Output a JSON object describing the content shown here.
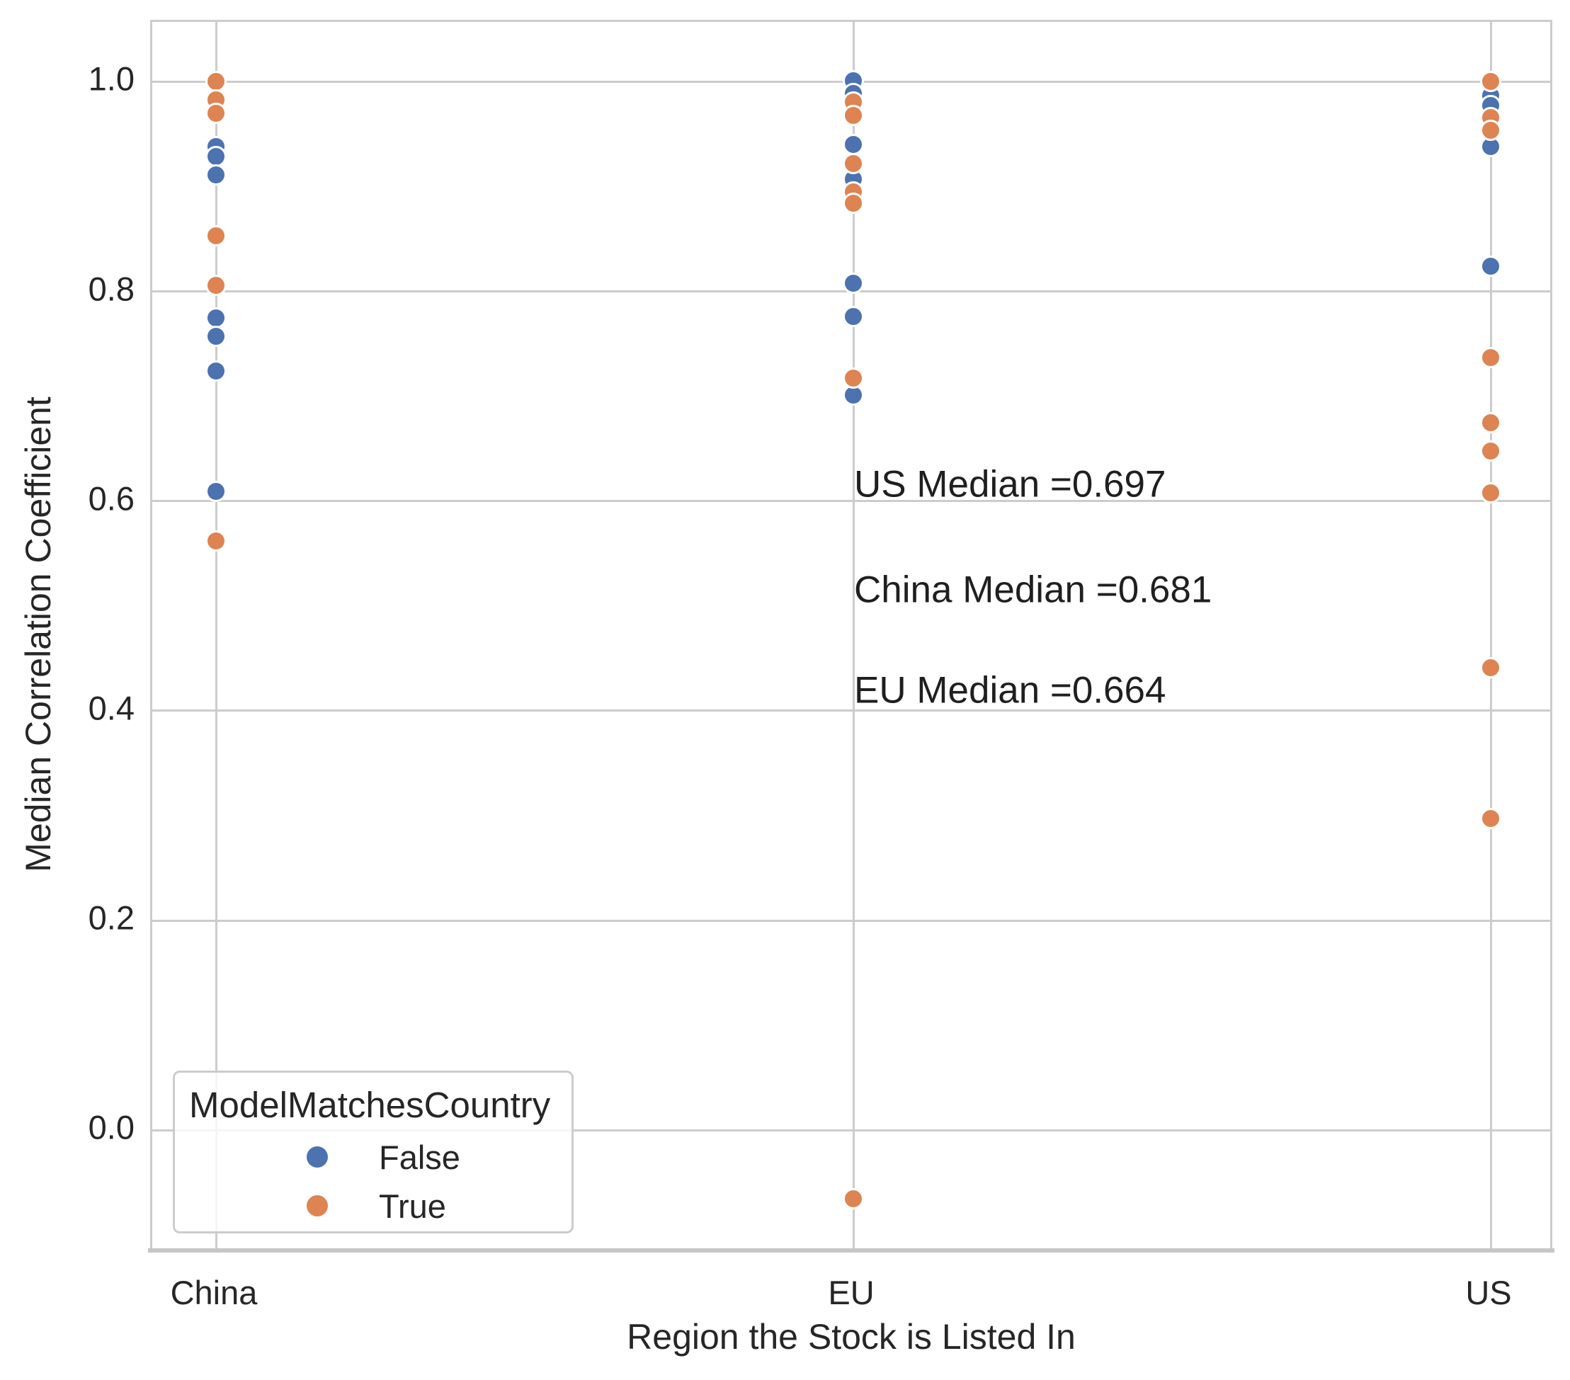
{
  "chart_data": {
    "type": "scatter",
    "title": "",
    "xlabel": "Region the Stock is Listed In",
    "ylabel": "Median Correlation Coefficient",
    "categories": [
      "China",
      "EU",
      "US"
    ],
    "y_ticks": [
      0.0,
      0.2,
      0.4,
      0.6,
      0.8,
      1.0
    ],
    "y_tick_labels": [
      "0.0",
      "0.2",
      "0.4",
      "0.6",
      "0.8",
      "1.0"
    ],
    "xlim": [
      -0.1,
      2.1
    ],
    "ylim": [
      -0.118,
      1.057
    ],
    "grid": true,
    "legend": {
      "title": "ModelMatchesCountry",
      "position": "lower-left",
      "entries": [
        {
          "label": "False",
          "color": "#4C72B0"
        },
        {
          "label": "True",
          "color": "#DD8452"
        }
      ]
    },
    "series": [
      {
        "name": "False",
        "color": "#4C72B0",
        "points": [
          {
            "category": "China",
            "y": 0.938
          },
          {
            "category": "China",
            "y": 0.929
          },
          {
            "category": "China",
            "y": 0.911
          },
          {
            "category": "China",
            "y": 0.775
          },
          {
            "category": "China",
            "y": 0.757
          },
          {
            "category": "China",
            "y": 0.724
          },
          {
            "category": "China",
            "y": 0.609
          },
          {
            "category": "EU",
            "y": 1.001
          },
          {
            "category": "EU",
            "y": 0.989
          },
          {
            "category": "EU",
            "y": 0.94
          },
          {
            "category": "EU",
            "y": 0.907
          },
          {
            "category": "EU",
            "y": 0.808
          },
          {
            "category": "EU",
            "y": 0.776
          },
          {
            "category": "EU",
            "y": 0.701
          },
          {
            "category": "US",
            "y": 0.987
          },
          {
            "category": "US",
            "y": 0.977
          },
          {
            "category": "US",
            "y": 0.938
          },
          {
            "category": "US",
            "y": 0.824
          }
        ]
      },
      {
        "name": "True",
        "color": "#DD8452",
        "points": [
          {
            "category": "China",
            "y": 1.0
          },
          {
            "category": "China",
            "y": 0.983
          },
          {
            "category": "China",
            "y": 0.97
          },
          {
            "category": "China",
            "y": 0.853
          },
          {
            "category": "China",
            "y": 0.806
          },
          {
            "category": "China",
            "y": 0.562
          },
          {
            "category": "EU",
            "y": 0.981
          },
          {
            "category": "EU",
            "y": 0.968
          },
          {
            "category": "EU",
            "y": 0.922
          },
          {
            "category": "EU",
            "y": 0.895
          },
          {
            "category": "EU",
            "y": 0.884
          },
          {
            "category": "EU",
            "y": 0.717
          },
          {
            "category": "EU",
            "y": -0.065
          },
          {
            "category": "US",
            "y": 1.0
          },
          {
            "category": "US",
            "y": 0.966
          },
          {
            "category": "US",
            "y": 0.954
          },
          {
            "category": "US",
            "y": 0.737
          },
          {
            "category": "US",
            "y": 0.675
          },
          {
            "category": "US",
            "y": 0.648
          },
          {
            "category": "US",
            "y": 0.608
          },
          {
            "category": "US",
            "y": 0.441
          },
          {
            "category": "US",
            "y": 0.297
          }
        ]
      }
    ],
    "annotations": [
      {
        "text": "US Median =0.697",
        "x": 1.0,
        "y": 0.613
      },
      {
        "text": "China Median =0.681",
        "x": 1.0,
        "y": 0.513
      },
      {
        "text": "EU Median =0.664",
        "x": 1.0,
        "y": 0.417
      }
    ]
  },
  "colors": {
    "background": "#ffffff",
    "grid": "#cccccc",
    "spine": "#cccccc",
    "bottom_spine": "#c6c6c6",
    "text": "#262626",
    "annotation_text": "#1f1f1f",
    "series_false": "#4C72B0",
    "series_true": "#DD8452"
  }
}
